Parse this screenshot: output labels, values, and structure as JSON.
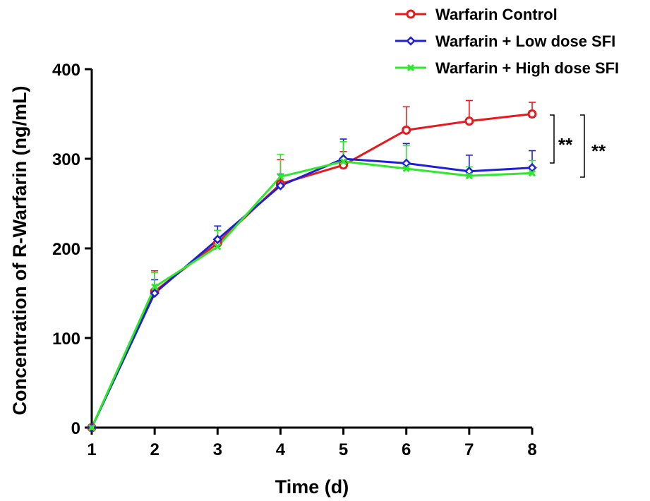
{
  "chart_data": {
    "type": "line",
    "xlabel": "Time (d)",
    "ylabel": "Concentration of R-Warfarin (ng/mL)",
    "x": [
      1,
      2,
      3,
      4,
      5,
      6,
      7,
      8
    ],
    "x_ticks": [
      "1",
      "2",
      "3",
      "4",
      "5",
      "6",
      "7",
      "8"
    ],
    "xlim": [
      1,
      8
    ],
    "y_ticks": [
      "0",
      "100",
      "200",
      "300",
      "400"
    ],
    "ylim": [
      0,
      400
    ],
    "grid": false,
    "legend_position": "top-right",
    "series": [
      {
        "name": "Warfarin Control",
        "color": "#e8191c",
        "marker": "circle",
        "values": [
          0,
          152,
          206,
          272,
          293,
          332,
          342,
          350
        ],
        "errors": [
          0,
          23,
          14,
          27,
          15,
          26,
          23,
          13
        ]
      },
      {
        "name": "Warfarin + Low dose SFI",
        "color": "#1f1fd6",
        "marker": "diamond",
        "values": [
          0,
          150,
          210,
          270,
          300,
          295,
          286,
          290
        ],
        "errors": [
          0,
          15,
          15,
          13,
          22,
          22,
          18,
          19
        ]
      },
      {
        "name": "Warfarin + High dose SFI",
        "color": "#2ee82e",
        "marker": "cross",
        "values": [
          0,
          157,
          202,
          280,
          297,
          289,
          281,
          284
        ],
        "errors": [
          0,
          16,
          18,
          25,
          22,
          26,
          10,
          14
        ]
      }
    ],
    "annotations": [
      "**",
      "**"
    ]
  }
}
